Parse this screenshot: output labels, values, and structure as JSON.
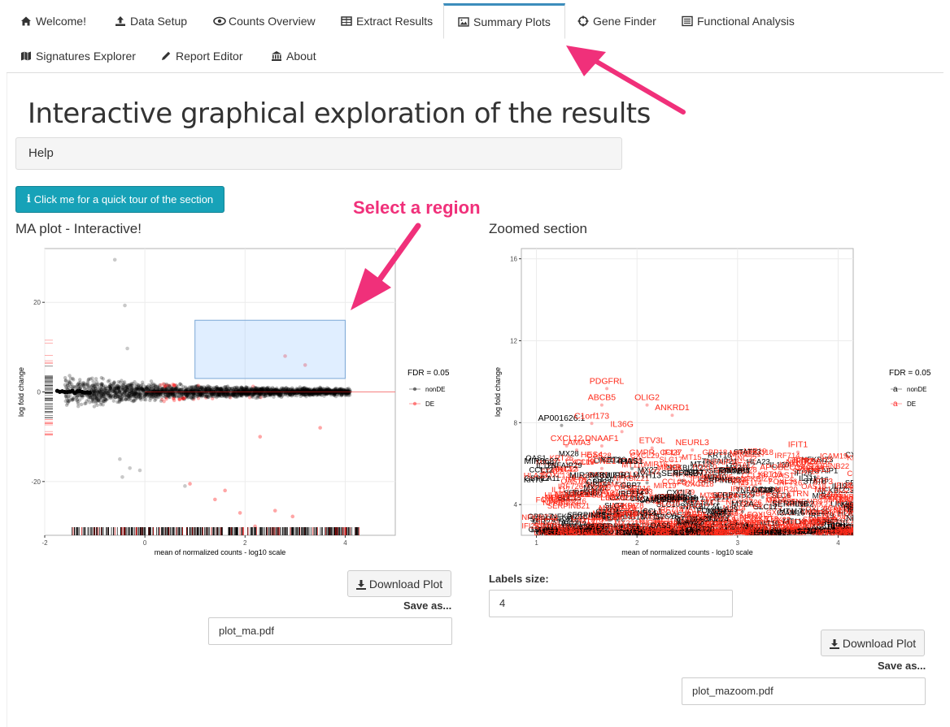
{
  "nav": {
    "tabs": [
      {
        "label": "Welcome!",
        "icon": "home-icon"
      },
      {
        "label": "Data Setup",
        "icon": "upload-icon"
      },
      {
        "label": "Counts Overview",
        "icon": "eye-icon"
      },
      {
        "label": "Extract Results",
        "icon": "table-icon"
      },
      {
        "label": "Summary Plots",
        "icon": "image-icon"
      },
      {
        "label": "Gene Finder",
        "icon": "crosshairs-icon"
      },
      {
        "label": "Functional Analysis",
        "icon": "list-alt-icon"
      },
      {
        "label": "Signatures Explorer",
        "icon": "map-icon"
      },
      {
        "label": "Report Editor",
        "icon": "pencil-icon"
      },
      {
        "label": "About",
        "icon": "institution-icon"
      }
    ],
    "active": "Summary Plots"
  },
  "page": {
    "title": "Interactive graphical exploration of the results",
    "help_label": "Help",
    "tour_button": "Click me for a quick tour of the section",
    "annotation_select": "Select a region"
  },
  "ma_plot": {
    "section_title": "MA plot - Interactive!",
    "download_label": "Download Plot",
    "save_as_label": "Save as...",
    "filename": "plot_ma.pdf",
    "chart_data": {
      "type": "scatter",
      "xlabel": "mean of normalized counts - log10 scale",
      "ylabel": "log fold change",
      "xlim": [
        -2,
        5
      ],
      "ylim": [
        -32,
        32
      ],
      "x_ticks": [
        -2,
        0,
        2,
        4
      ],
      "y_ticks": [
        -20,
        0,
        20
      ],
      "legend_title": "FDR = 0.05",
      "legend": [
        {
          "name": "nonDE",
          "color": "#000000"
        },
        {
          "name": "DE",
          "color": "#ff2020"
        }
      ],
      "selection": {
        "x": [
          1.0,
          4.0
        ],
        "y": [
          3.0,
          16.0
        ]
      }
    }
  },
  "zoom_plot": {
    "section_title": "Zoomed section",
    "labels_size_label": "Labels size:",
    "labels_size_value": "4",
    "download_label": "Download Plot",
    "save_as_label": "Save as...",
    "filename": "plot_mazoom.pdf",
    "chart_data": {
      "type": "scatter",
      "xlabel": "mean of normalized counts - log10 scale",
      "ylabel": "log fold change",
      "xlim": [
        0.85,
        4.15
      ],
      "ylim": [
        2.5,
        16.5
      ],
      "x_ticks": [
        1,
        2,
        3,
        4
      ],
      "y_ticks": [
        4,
        8,
        12,
        16
      ],
      "legend_title": "FDR = 0.05",
      "legend": [
        {
          "name": "nonDE",
          "color": "#000000"
        },
        {
          "name": "DE",
          "color": "#ff2020"
        }
      ],
      "labels": [
        {
          "text": "PDGFRL",
          "x": 1.7,
          "y": 9.9,
          "de": true
        },
        {
          "text": "ABCB5",
          "x": 1.65,
          "y": 9.1,
          "de": true
        },
        {
          "text": "OLIG2",
          "x": 2.1,
          "y": 9.1,
          "de": true
        },
        {
          "text": "ANKRD1",
          "x": 2.35,
          "y": 8.6,
          "de": true
        },
        {
          "text": "AP001626.1",
          "x": 1.25,
          "y": 8.1,
          "de": false
        },
        {
          "text": "C1orf173",
          "x": 1.55,
          "y": 8.2,
          "de": true
        },
        {
          "text": "IL36G",
          "x": 1.85,
          "y": 7.8,
          "de": true
        },
        {
          "text": "CXCL12",
          "x": 1.3,
          "y": 7.1,
          "de": true
        },
        {
          "text": "DNAAF1",
          "x": 1.65,
          "y": 7.1,
          "de": true
        },
        {
          "text": "LAMA3",
          "x": 1.4,
          "y": 6.9,
          "de": true
        },
        {
          "text": "ETV3L",
          "x": 2.15,
          "y": 7.0,
          "de": true
        },
        {
          "text": "NEURL3",
          "x": 2.55,
          "y": 6.9,
          "de": true
        },
        {
          "text": "IFIT1",
          "x": 3.6,
          "y": 6.8,
          "de": true
        },
        {
          "text": "HES4",
          "x": 1.55,
          "y": 6.3,
          "de": true
        },
        {
          "text": "GMPR",
          "x": 2.05,
          "y": 6.4,
          "de": true
        },
        {
          "text": "IFI27",
          "x": 2.35,
          "y": 6.4,
          "de": true
        },
        {
          "text": "KCNE1",
          "x": 1.65,
          "y": 6.0,
          "de": true
        },
        {
          "text": "HAS1",
          "x": 1.95,
          "y": 6.0,
          "de": false
        },
        {
          "text": "MIR3687",
          "x": 1.05,
          "y": 6.0,
          "de": false
        },
        {
          "text": "IFIT2",
          "x": 3.65,
          "y": 6.0,
          "de": true
        },
        {
          "text": "RSAD2",
          "x": 3.8,
          "y": 6.0,
          "de": true
        },
        {
          "text": "CKB",
          "x": 2.35,
          "y": 5.7,
          "de": true
        },
        {
          "text": "APOBEC3A",
          "x": 3.45,
          "y": 5.7,
          "de": true
        },
        {
          "text": "ISG15",
          "x": 3.8,
          "y": 5.6,
          "de": true
        },
        {
          "text": "MIR3648",
          "x": 1.5,
          "y": 5.3,
          "de": false
        },
        {
          "text": "NUPR1",
          "x": 1.8,
          "y": 5.3,
          "de": false
        },
        {
          "text": "MYH13",
          "x": 2.1,
          "y": 5.3,
          "de": false
        },
        {
          "text": "SERPINB7",
          "x": 2.45,
          "y": 5.4,
          "de": false
        },
        {
          "text": "OAS1",
          "x": 3.45,
          "y": 5.3,
          "de": true
        },
        {
          "text": "IFIT3",
          "x": 3.85,
          "y": 5.0,
          "de": true
        },
        {
          "text": "MX1",
          "x": 3.85,
          "y": 4.6,
          "de": true
        },
        {
          "text": "CCL8",
          "x": 3.25,
          "y": 4.6,
          "de": false
        },
        {
          "text": "LTRN",
          "x": 3.6,
          "y": 4.4,
          "de": true
        },
        {
          "text": "MT2A",
          "x": 3.05,
          "y": 3.9,
          "de": false
        },
        {
          "text": "SERPINB2",
          "x": 3.55,
          "y": 3.9,
          "de": false
        },
        {
          "text": "STSL",
          "x": 3.95,
          "y": 3.6,
          "de": true
        },
        {
          "text": "LINC02319",
          "x": 1.85,
          "y": 4.2,
          "de": true
        },
        {
          "text": "CCL2",
          "x": 3.75,
          "y": 3.0,
          "de": true
        }
      ]
    }
  }
}
